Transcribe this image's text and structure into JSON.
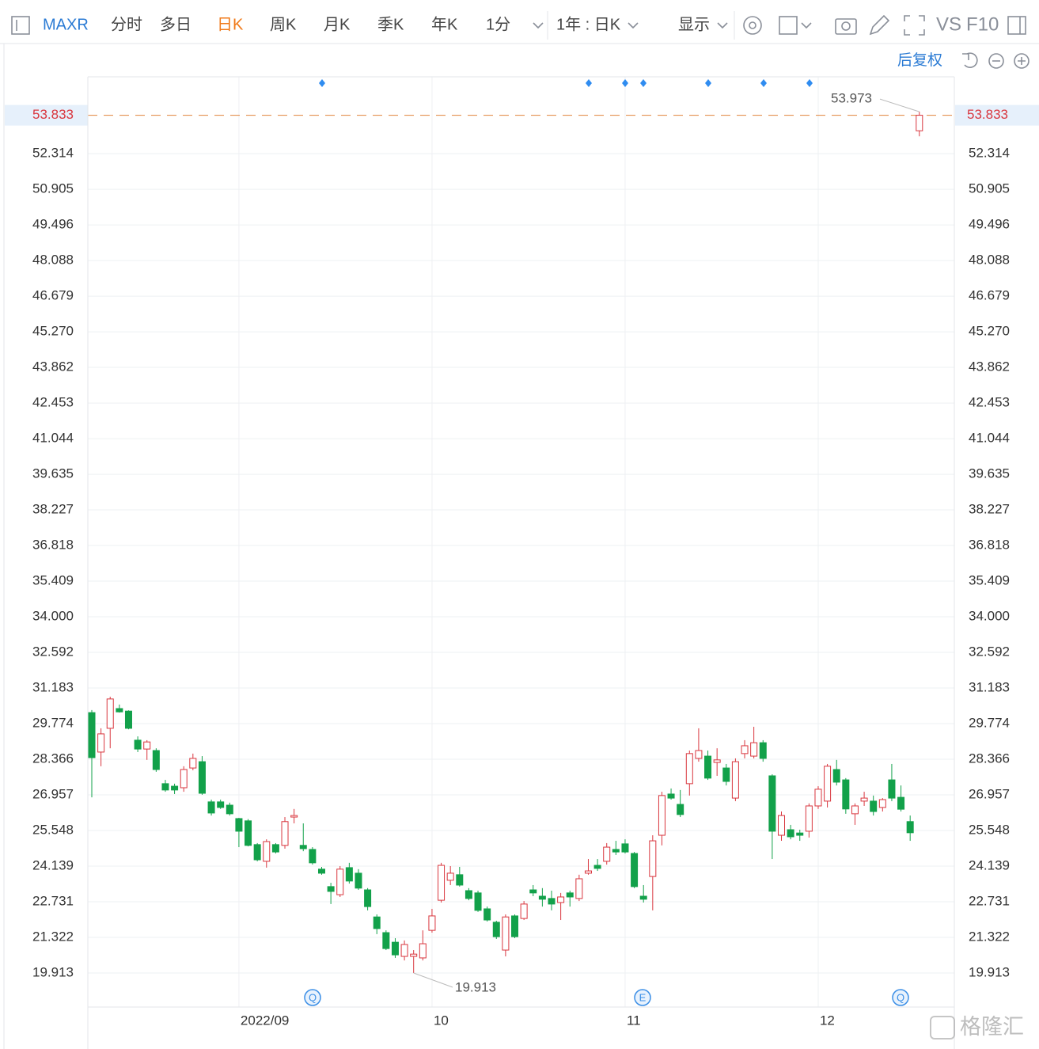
{
  "toolbar": {
    "symbol": "MAXR",
    "tabs": [
      "分时",
      "多日",
      "日K",
      "周K",
      "月K",
      "季K",
      "年K",
      "1分"
    ],
    "period": "1年 : 日K",
    "display": "显示",
    "vs": "VS",
    "f10": "F10",
    "adjust": "后复权"
  },
  "watermark": "格隆汇",
  "event_markers": [
    "Q",
    "E",
    "Q"
  ],
  "chart_data": {
    "type": "candlestick",
    "categories": [
      null,
      null,
      null,
      null,
      null,
      null,
      null,
      null,
      null,
      null,
      null,
      null,
      null,
      null,
      null,
      null,
      "2022/09",
      null,
      null,
      null,
      null,
      null,
      null,
      null,
      null,
      null,
      null,
      null,
      null,
      null,
      null,
      null,
      null,
      null,
      null,
      null,
      null,
      "10",
      null,
      null,
      null,
      null,
      null,
      null,
      null,
      null,
      null,
      null,
      null,
      null,
      null,
      null,
      null,
      null,
      null,
      null,
      null,
      null,
      "11",
      null,
      null,
      null,
      null,
      null,
      null,
      null,
      null,
      null,
      null,
      null,
      null,
      null,
      null,
      null,
      null,
      null,
      null,
      null,
      null,
      "12",
      null,
      null,
      null,
      null,
      null,
      null,
      null,
      null,
      null,
      null,
      null
    ],
    "open": [
      30.21,
      28.65,
      29.59,
      30.37,
      30.27,
      29.12,
      28.77,
      28.71,
      27.4,
      27.3,
      27.24,
      28.02,
      28.27,
      26.68,
      26.68,
      26.55,
      26.02,
      25.93,
      24.99,
      24.33,
      24.99,
      24.96,
      26.08,
      24.96,
      24.8,
      24.02,
      23.33,
      23.01,
      24.08,
      23.86,
      23.2,
      22.13,
      21.51,
      21.13,
      20.57,
      20.57,
      20.51,
      21.6,
      22.79,
      23.58,
      23.8,
      23.17,
      23.08,
      22.45,
      21.92,
      20.82,
      22.17,
      22.07,
      23.2,
      22.95,
      22.86,
      22.7,
      23.08,
      22.86,
      23.86,
      24.17,
      24.33,
      24.8,
      25.02,
      24.64,
      22.95,
      23.73,
      25.36,
      26.99,
      26.58,
      27.4,
      28.4,
      28.49,
      28.24,
      28.02,
      26.83,
      28.59,
      28.49,
      29.02,
      27.71,
      25.36,
      25.58,
      25.45,
      25.52,
      26.52,
      26.71,
      27.96,
      27.55,
      26.21,
      26.71,
      26.71,
      26.46,
      27.55,
      26.86,
      25.9,
      53.22
    ],
    "high": [
      30.31,
      29.59,
      30.84,
      30.53,
      30.3,
      29.27,
      29.12,
      28.8,
      27.55,
      27.4,
      28.09,
      28.59,
      28.49,
      26.77,
      26.77,
      26.65,
      26.05,
      26.0,
      25.05,
      25.2,
      25.05,
      26.08,
      26.4,
      25.83,
      24.89,
      24.11,
      23.48,
      24.14,
      24.27,
      24.02,
      23.27,
      22.23,
      21.6,
      21.29,
      21.2,
      20.82,
      21.6,
      22.45,
      24.27,
      24.14,
      24.11,
      23.27,
      23.17,
      22.54,
      21.98,
      22.23,
      22.23,
      22.76,
      23.39,
      23.27,
      23.17,
      23.08,
      23.17,
      23.8,
      24.42,
      24.42,
      25.05,
      25.14,
      25.2,
      24.7,
      23.39,
      25.36,
      27.08,
      27.21,
      27.15,
      28.71,
      29.59,
      28.71,
      28.8,
      28.18,
      28.4,
      29.12,
      29.65,
      29.12,
      27.77,
      26.3,
      25.77,
      25.58,
      26.62,
      27.3,
      28.18,
      28.34,
      27.62,
      26.62,
      27.08,
      26.93,
      26.83,
      28.18,
      27.33,
      26.14,
      53.973
    ],
    "low": [
      26.86,
      28.09,
      28.8,
      30.21,
      29.55,
      28.65,
      28.34,
      27.87,
      27.08,
      26.99,
      27.08,
      27.93,
      26.96,
      26.14,
      26.4,
      26.14,
      24.89,
      24.92,
      24.33,
      24.08,
      24.64,
      24.83,
      25.83,
      24.73,
      24.2,
      23.8,
      22.64,
      22.92,
      23.45,
      23.2,
      22.39,
      21.45,
      20.82,
      20.51,
      20.41,
      19.913,
      20.41,
      21.51,
      22.7,
      23.39,
      23.33,
      22.79,
      22.33,
      21.95,
      21.26,
      20.57,
      21.29,
      22.01,
      22.95,
      22.54,
      22.39,
      22.01,
      22.54,
      22.76,
      23.8,
      23.95,
      24.2,
      24.58,
      24.64,
      23.27,
      22.7,
      22.39,
      24.96,
      26.77,
      26.08,
      26.93,
      28.27,
      27.55,
      27.71,
      27.33,
      26.71,
      28.4,
      28.4,
      28.27,
      24.42,
      25.14,
      25.2,
      25.14,
      25.27,
      26.4,
      26.46,
      27.33,
      26.21,
      25.77,
      26.52,
      26.14,
      26.3,
      26.71,
      26.3,
      25.14,
      53.0
    ],
    "close": [
      28.43,
      29.37,
      30.75,
      30.24,
      29.59,
      28.77,
      29.05,
      27.96,
      27.15,
      27.15,
      27.96,
      28.4,
      27.02,
      26.24,
      26.46,
      26.21,
      25.52,
      24.96,
      24.39,
      25.11,
      24.7,
      25.9,
      26.14,
      24.83,
      24.27,
      23.86,
      23.14,
      24.02,
      23.55,
      23.27,
      22.54,
      21.67,
      20.88,
      20.63,
      21.04,
      20.66,
      21.07,
      22.17,
      24.17,
      23.86,
      23.39,
      22.86,
      22.39,
      22.01,
      21.35,
      22.13,
      21.35,
      22.64,
      23.08,
      22.83,
      22.64,
      22.92,
      22.92,
      23.64,
      23.95,
      24.05,
      24.89,
      24.7,
      24.7,
      23.33,
      22.83,
      25.14,
      26.93,
      26.83,
      26.18,
      28.59,
      28.71,
      27.62,
      28.34,
      27.49,
      28.27,
      28.9,
      29.02,
      28.4,
      25.52,
      26.14,
      25.3,
      25.36,
      26.52,
      27.18,
      28.09,
      27.46,
      26.4,
      26.52,
      26.83,
      26.3,
      26.77,
      26.83,
      26.39,
      25.46,
      53.833
    ],
    "up_color": "#d9363e",
    "down_color": "#12a14a",
    "last_price_color": "#e0823c",
    "ylim": [
      18.567,
      55.354
    ],
    "yticks": [
      19.913,
      21.322,
      22.731,
      24.139,
      25.548,
      26.957,
      28.366,
      29.774,
      31.183,
      32.592,
      {
        "value": 34,
        "label": "34.000"
      },
      35.409,
      36.818,
      38.227,
      39.635,
      41.044,
      42.453,
      43.862,
      {
        "value": 45.27,
        "label": "45.270"
      },
      46.679,
      48.088,
      49.496,
      50.905,
      52.314
    ],
    "grid": true
  }
}
